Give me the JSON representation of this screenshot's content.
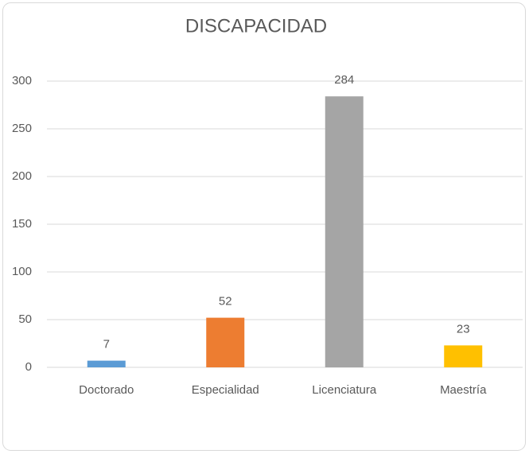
{
  "chart_data": {
    "type": "bar",
    "title": "DISCAPACIDAD",
    "categories": [
      "Doctorado",
      "Especialidad",
      "Licenciatura",
      "Maestría"
    ],
    "values": [
      7,
      52,
      284,
      23
    ],
    "colors": [
      "#5b9bd5",
      "#ed7d31",
      "#a5a5a5",
      "#ffc000"
    ],
    "ylim": [
      0,
      300
    ],
    "yticks": [
      0,
      50,
      100,
      150,
      200,
      250,
      300
    ],
    "grid": true
  }
}
